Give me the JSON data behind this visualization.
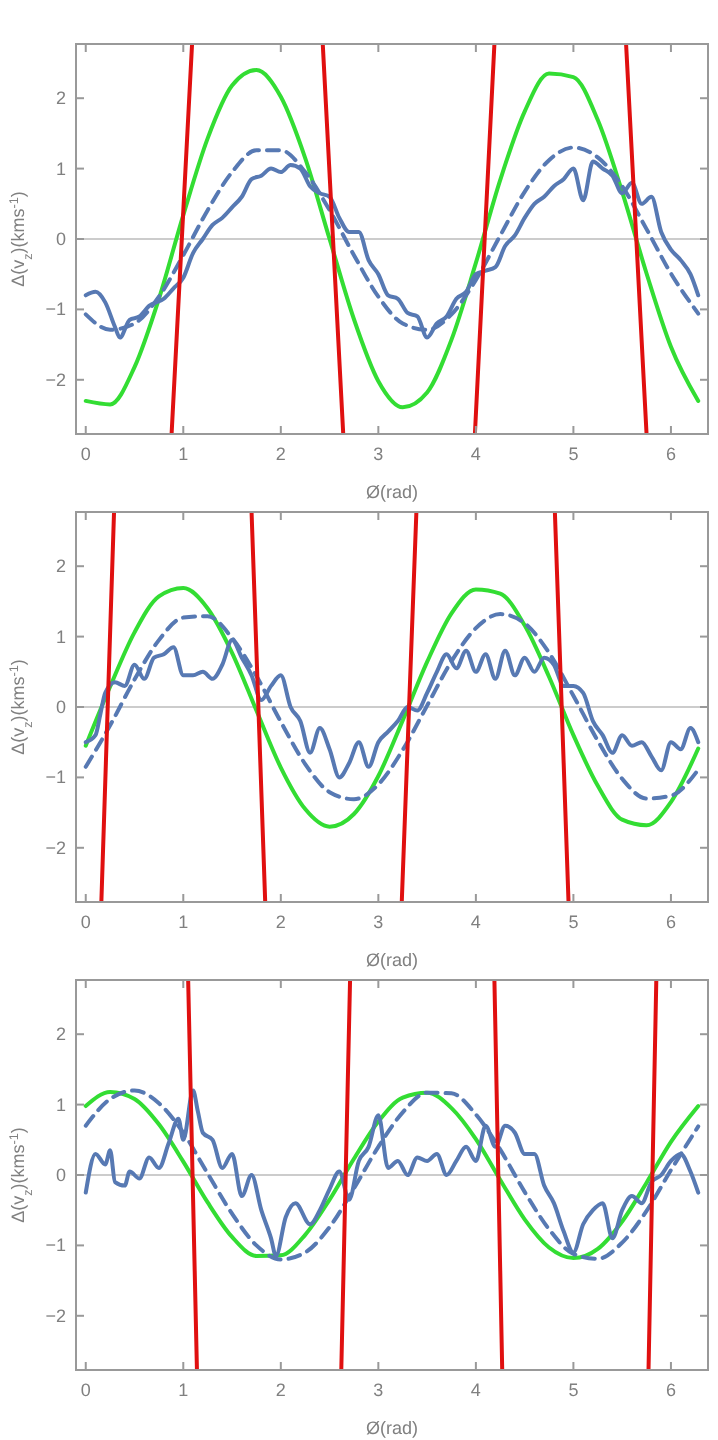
{
  "chart_data": [
    {
      "type": "line",
      "xlabel": "Ø(rad)",
      "ylabel": "Δ(v$_{z}$)(kms$^{-1}$)",
      "xlim": [
        -0.1,
        6.38
      ],
      "ylim": [
        -2.77,
        2.77
      ],
      "xticks": [
        0,
        1,
        2,
        3,
        4,
        5,
        6
      ],
      "yticks": [
        -2,
        -1,
        0,
        1,
        2
      ],
      "ref_lines": [
        {
          "axis": "y",
          "value": 0,
          "color": "#cccccc"
        }
      ],
      "series": [
        {
          "color": "#33dd33",
          "x": [
            0,
            0.25,
            0.5,
            0.75,
            1,
            1.25,
            1.5,
            1.75,
            2,
            2.25,
            2.5,
            2.75,
            3,
            3.25,
            3.5,
            3.75,
            4,
            4.25,
            4.5,
            4.75,
            5,
            5.25,
            5.5,
            5.75,
            6,
            6.28
          ],
          "values": [
            -2.3,
            -2.35,
            -1.82,
            -0.85,
            0.34,
            1.43,
            2.18,
            2.4,
            2.02,
            1.15,
            0,
            -1.14,
            -2.02,
            -2.39,
            -2.18,
            -1.43,
            -0.34,
            0.84,
            1.81,
            2.35,
            2.3,
            1.69,
            0.67,
            -0.49,
            -1.53,
            -2.3
          ]
        },
        {
          "color": "#5779b3",
          "line_style": "dashed",
          "x": [
            0,
            0.25,
            0.5,
            0.75,
            1,
            1.25,
            1.5,
            1.75,
            2,
            2.25,
            2.5,
            2.75,
            3,
            3.25,
            3.5,
            3.75,
            4,
            4.25,
            4.5,
            4.75,
            5,
            5.25,
            5.5,
            5.75,
            6,
            6.28
          ],
          "values": [
            -1.07,
            -1.29,
            -1.2,
            -0.82,
            -0.23,
            0.41,
            0.95,
            1.26,
            1.26,
            0.95,
            0.41,
            -0.23,
            -0.82,
            -1.2,
            -1.29,
            -1.07,
            -0.58,
            0.05,
            0.67,
            1.12,
            1.3,
            1.16,
            0.75,
            0.14,
            -0.49,
            -1.06
          ]
        },
        {
          "color": "#5779b3",
          "x": [
            0,
            0.1,
            0.2,
            0.3,
            0.35,
            0.45,
            0.55,
            0.65,
            0.8,
            0.9,
            1,
            1.1,
            1.2,
            1.3,
            1.4,
            1.5,
            1.6,
            1.7,
            1.8,
            1.9,
            2,
            2.1,
            2.2,
            2.3,
            2.4,
            2.5,
            2.6,
            2.7,
            2.8,
            2.9,
            3,
            3.1,
            3.2,
            3.3,
            3.4,
            3.5,
            3.6,
            3.7,
            3.8,
            3.9,
            4,
            4.1,
            4.2,
            4.3,
            4.4,
            4.5,
            4.6,
            4.7,
            4.8,
            4.9,
            5,
            5.1,
            5.2,
            5.3,
            5.4,
            5.5,
            5.6,
            5.7,
            5.8,
            5.9,
            6,
            6.1,
            6.2,
            6.28
          ],
          "values": [
            -0.8,
            -0.75,
            -0.9,
            -1.25,
            -1.4,
            -1.15,
            -1.1,
            -0.95,
            -0.85,
            -0.7,
            -0.55,
            -0.2,
            0,
            0.2,
            0.3,
            0.45,
            0.6,
            0.85,
            0.9,
            1,
            0.95,
            1.05,
            1,
            0.75,
            0.65,
            0.6,
            0.3,
            0.1,
            0.1,
            -0.3,
            -0.5,
            -0.8,
            -0.85,
            -1.05,
            -1.1,
            -1.4,
            -1.2,
            -1.1,
            -0.85,
            -0.75,
            -0.5,
            -0.45,
            -0.4,
            -0.1,
            0.05,
            0.3,
            0.5,
            0.6,
            0.75,
            0.85,
            1,
            0.55,
            1.1,
            1,
            0.9,
            0.65,
            0.8,
            0.5,
            0.6,
            0.1,
            -0.15,
            -0.3,
            -0.5,
            -0.8
          ]
        },
        {
          "color": "#e01010",
          "x": [
            0.88,
            1.09
          ],
          "values": [
            -2.77,
            2.77
          ]
        },
        {
          "color": "#e01010",
          "x": [
            2.43,
            2.64
          ],
          "values": [
            2.77,
            -2.77
          ]
        },
        {
          "color": "#e01010",
          "x": [
            3.99,
            4.19
          ],
          "values": [
            -2.77,
            2.77
          ]
        },
        {
          "color": "#e01010",
          "x": [
            5.54,
            5.75
          ],
          "values": [
            2.77,
            -2.77
          ]
        }
      ]
    },
    {
      "type": "line",
      "xlabel": "Ø(rad)",
      "ylabel": "Δ(v$_{z}$)(kms$^{-1}$)",
      "xlim": [
        -0.1,
        6.38
      ],
      "ylim": [
        -2.77,
        2.77
      ],
      "xticks": [
        0,
        1,
        2,
        3,
        4,
        5,
        6
      ],
      "yticks": [
        -2,
        -1,
        0,
        1,
        2
      ],
      "ref_lines": [
        {
          "axis": "y",
          "value": 0,
          "color": "#cccccc"
        }
      ],
      "series": [
        {
          "color": "#33dd33",
          "x": [
            0,
            0.25,
            0.5,
            0.75,
            1,
            1.25,
            1.5,
            1.75,
            2,
            2.25,
            2.5,
            2.75,
            3,
            3.25,
            3.5,
            3.75,
            4,
            4.25,
            4.5,
            4.75,
            5,
            5.25,
            5.5,
            5.75,
            6,
            6.28
          ],
          "values": [
            -0.55,
            0.29,
            1.06,
            1.57,
            1.69,
            1.4,
            0.77,
            -0.05,
            -0.86,
            -1.45,
            -1.7,
            -1.52,
            -0.98,
            -0.19,
            0.64,
            1.33,
            1.67,
            1.61,
            1.16,
            0.43,
            -0.4,
            -1.12,
            -1.6,
            -1.68,
            -1.35,
            -0.59
          ]
        },
        {
          "color": "#5779b3",
          "line_style": "dashed",
          "x": [
            0,
            0.25,
            0.5,
            0.75,
            1,
            1.25,
            1.5,
            1.75,
            2,
            2.25,
            2.5,
            2.75,
            3,
            3.25,
            3.5,
            3.75,
            4,
            4.25,
            4.5,
            4.75,
            5,
            5.25,
            5.5,
            5.75,
            6,
            6.28
          ],
          "values": [
            -0.85,
            -0.26,
            0.39,
            0.95,
            1.27,
            1.29,
            0.98,
            0.44,
            -0.21,
            -0.81,
            -1.21,
            -1.31,
            -1.1,
            -0.61,
            0.02,
            0.65,
            1.12,
            1.32,
            1.19,
            0.77,
            0.16,
            -0.48,
            -1.02,
            -1.3,
            -1.26,
            -0.89
          ]
        },
        {
          "color": "#5779b3",
          "x": [
            0,
            0.1,
            0.15,
            0.2,
            0.3,
            0.4,
            0.5,
            0.6,
            0.7,
            0.8,
            0.9,
            1,
            1.1,
            1.2,
            1.3,
            1.4,
            1.5,
            1.6,
            1.7,
            1.8,
            1.9,
            2,
            2.1,
            2.2,
            2.3,
            2.4,
            2.5,
            2.6,
            2.7,
            2.8,
            2.9,
            3,
            3.1,
            3.2,
            3.3,
            3.4,
            3.5,
            3.6,
            3.7,
            3.8,
            3.9,
            4,
            4.1,
            4.2,
            4.3,
            4.4,
            4.5,
            4.6,
            4.7,
            4.8,
            4.9,
            5,
            5.1,
            5.2,
            5.3,
            5.4,
            5.5,
            5.6,
            5.7,
            5.8,
            5.9,
            6,
            6.1,
            6.2,
            6.28
          ],
          "values": [
            -0.5,
            -0.4,
            -0.1,
            0.2,
            0.35,
            0.3,
            0.6,
            0.4,
            0.7,
            0.75,
            0.85,
            0.45,
            0.45,
            0.5,
            0.4,
            0.6,
            0.95,
            0.7,
            0.45,
            0.1,
            0.3,
            0.45,
            0,
            -0.2,
            -0.65,
            -0.3,
            -0.6,
            -1,
            -0.8,
            -0.5,
            -0.85,
            -0.5,
            -0.35,
            -0.2,
            0,
            -0.05,
            0.2,
            0.5,
            0.75,
            0.55,
            0.8,
            0.5,
            0.75,
            0.4,
            0.8,
            0.45,
            0.7,
            0.5,
            0.7,
            0.6,
            0.3,
            0.3,
            0.2,
            -0.2,
            -0.4,
            -0.65,
            -0.4,
            -0.55,
            -0.5,
            -0.7,
            -0.9,
            -0.5,
            -0.6,
            -0.3,
            -0.5
          ]
        },
        {
          "color": "#e01010",
          "x": [
            0.16,
            0.29
          ],
          "values": [
            -2.77,
            2.77
          ]
        },
        {
          "color": "#e01010",
          "x": [
            1.7,
            1.84
          ],
          "values": [
            2.77,
            -2.77
          ]
        },
        {
          "color": "#e01010",
          "x": [
            3.24,
            3.39
          ],
          "values": [
            -2.77,
            2.77
          ]
        },
        {
          "color": "#e01010",
          "x": [
            4.81,
            4.95
          ],
          "values": [
            2.77,
            -2.77
          ]
        }
      ]
    },
    {
      "type": "line",
      "xlabel": "Ø(rad)",
      "ylabel": "Δ(v$_{z}$)(kms$^{-1}$)",
      "xlim": [
        -0.1,
        6.38
      ],
      "ylim": [
        -2.77,
        2.77
      ],
      "xticks": [
        0,
        1,
        2,
        3,
        4,
        5,
        6
      ],
      "yticks": [
        -2,
        -1,
        0,
        1,
        2
      ],
      "ref_lines": [
        {
          "axis": "y",
          "value": 0,
          "color": "#cccccc"
        }
      ],
      "series": [
        {
          "color": "#33dd33",
          "x": [
            0,
            0.25,
            0.5,
            0.75,
            1,
            1.25,
            1.5,
            1.75,
            2,
            2.25,
            2.5,
            2.75,
            3,
            3.25,
            3.5,
            3.75,
            4,
            4.25,
            4.5,
            4.75,
            5,
            5.25,
            5.5,
            5.75,
            6,
            6.28
          ],
          "values": [
            0.98,
            1.18,
            1.08,
            0.72,
            0.19,
            -0.39,
            -0.88,
            -1.15,
            -1.14,
            -0.85,
            -0.35,
            0.23,
            0.76,
            1.1,
            1.17,
            0.95,
            0.51,
            -0.07,
            -0.63,
            -1.03,
            -1.18,
            -1.05,
            -0.66,
            -0.11,
            0.47,
            0.98
          ]
        },
        {
          "color": "#5779b3",
          "line_style": "dashed",
          "x": [
            0,
            0.25,
            0.5,
            0.75,
            1,
            1.25,
            1.5,
            1.75,
            2,
            2.25,
            2.5,
            2.75,
            3,
            3.25,
            3.5,
            3.75,
            4,
            4.25,
            4.5,
            4.75,
            5,
            5.25,
            5.5,
            5.75,
            6,
            6.28
          ],
          "values": [
            0.7,
            1.08,
            1.2,
            1.02,
            0.6,
            0.02,
            -0.55,
            -1,
            -1.2,
            -1.1,
            -0.74,
            -0.19,
            0.4,
            0.89,
            1.17,
            1.16,
            0.86,
            0.36,
            -0.24,
            -0.77,
            -1.12,
            -1.19,
            -0.96,
            -0.51,
            0.07,
            0.69
          ]
        },
        {
          "color": "#5779b3",
          "x": [
            0,
            0.1,
            0.2,
            0.25,
            0.3,
            0.4,
            0.45,
            0.55,
            0.65,
            0.75,
            0.85,
            0.95,
            1,
            1.1,
            1.15,
            1.2,
            1.3,
            1.4,
            1.5,
            1.6,
            1.7,
            1.8,
            1.9,
            1.95,
            2.05,
            2.15,
            2.3,
            2.4,
            2.5,
            2.6,
            2.7,
            2.8,
            2.9,
            3,
            3.1,
            3.2,
            3.3,
            3.4,
            3.5,
            3.6,
            3.7,
            3.8,
            3.9,
            4,
            4.1,
            4.2,
            4.3,
            4.4,
            4.5,
            4.6,
            4.7,
            4.8,
            4.9,
            5,
            5.1,
            5.2,
            5.3,
            5.4,
            5.5,
            5.6,
            5.7,
            5.8,
            5.9,
            6,
            6.1,
            6.2,
            6.28
          ],
          "values": [
            -0.25,
            0.3,
            0.15,
            0.35,
            -0.1,
            -0.15,
            0.05,
            -0.05,
            0.25,
            0.1,
            0.45,
            0.8,
            0.5,
            1.2,
            0.9,
            0.6,
            0.5,
            0.1,
            0.3,
            -0.3,
            0,
            -0.5,
            -0.9,
            -1.15,
            -0.6,
            -0.4,
            -0.7,
            -0.5,
            -0.2,
            0.05,
            -0.35,
            0.2,
            0.4,
            0.85,
            0.1,
            0.2,
            0,
            0.25,
            0.2,
            0.3,
            0,
            0.2,
            0.4,
            0.2,
            0.7,
            0.4,
            0.7,
            0.6,
            0.3,
            0.3,
            -0.15,
            -0.4,
            -0.8,
            -1.1,
            -0.7,
            -0.5,
            -0.4,
            -0.9,
            -0.5,
            -0.3,
            -0.4,
            -0.1,
            0,
            0.2,
            0.3,
            0.05,
            -0.25
          ]
        },
        {
          "color": "#e01010",
          "x": [
            1.05,
            1.14
          ],
          "values": [
            2.77,
            -2.77
          ]
        },
        {
          "color": "#e01010",
          "x": [
            2.62,
            2.71
          ],
          "values": [
            -2.77,
            2.77
          ]
        },
        {
          "color": "#e01010",
          "x": [
            4.19,
            4.27
          ],
          "values": [
            2.77,
            -2.77
          ]
        },
        {
          "color": "#e01010",
          "x": [
            5.77,
            5.85
          ],
          "values": [
            -2.77,
            2.77
          ]
        }
      ]
    }
  ]
}
